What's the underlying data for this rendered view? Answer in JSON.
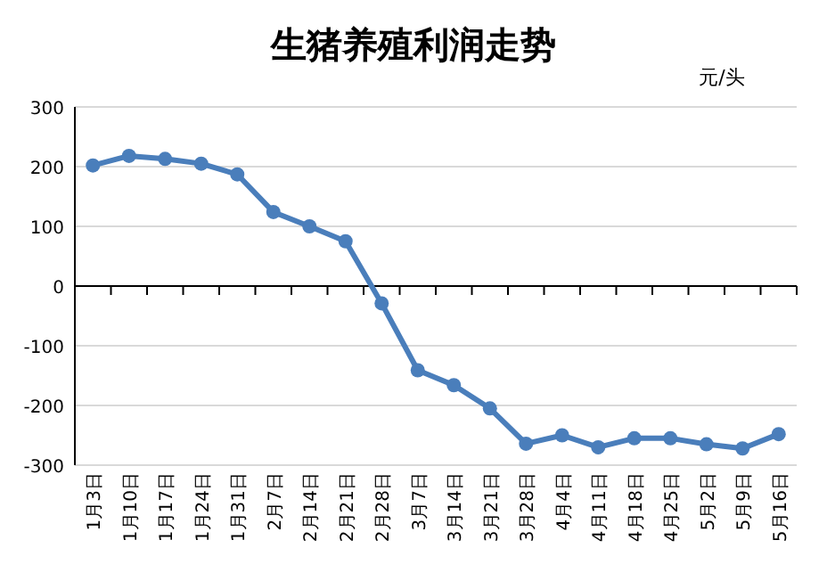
{
  "chart_data": {
    "type": "line",
    "title": "生猪养殖利润走势",
    "ylabel": "元/头",
    "categories": [
      "1月3日",
      "1月10日",
      "1月17日",
      "1月24日",
      "1月31日",
      "2月7日",
      "2月14日",
      "2月21日",
      "2月28日",
      "3月7日",
      "3月14日",
      "3月21日",
      "3月28日",
      "4月4日",
      "4月11日",
      "4月18日",
      "4月25日",
      "5月2日",
      "5月9日",
      "5月16日"
    ],
    "series": [
      {
        "color": "#4a7ebb",
        "values": [
          202,
          218,
          213,
          205,
          187,
          124,
          100,
          75,
          -29,
          -141,
          -166,
          -205,
          -264,
          -250,
          -270,
          -255,
          -255,
          -265,
          -272,
          -248
        ]
      }
    ],
    "ylim": [
      -300,
      300
    ],
    "yticks": [
      -300,
      -200,
      -100,
      0,
      100,
      200,
      300
    ],
    "grid": "y",
    "marker": "circle",
    "line_style": "solid"
  }
}
